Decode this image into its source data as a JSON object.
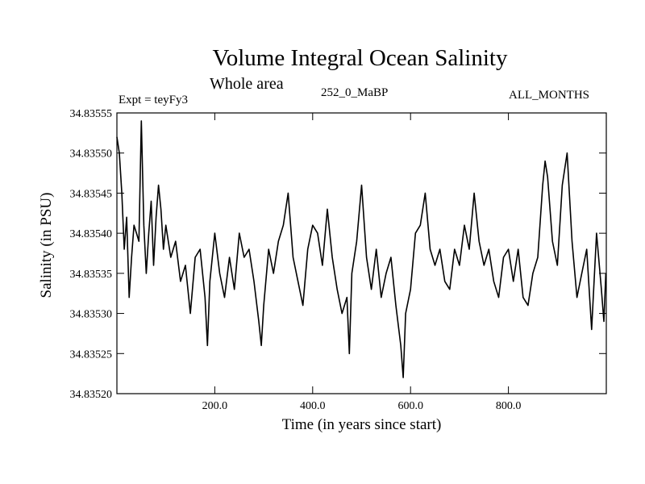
{
  "chart_data": {
    "type": "line",
    "title": "Volume Integral Ocean Salinity",
    "subtitle": "Whole area",
    "annotations": {
      "experiment": "Expt = teyFy3",
      "run": "252_0_MaBP",
      "period": "ALL_MONTHS"
    },
    "xlabel": "Time (in years since start)",
    "ylabel": "Salinity (in PSU)",
    "xlim": [
      0,
      1000
    ],
    "ylim": [
      34.8352,
      34.83555
    ],
    "xticks": [
      200,
      400,
      600,
      800
    ],
    "xtick_labels": [
      "200.0",
      "400.0",
      "600.0",
      "800.0"
    ],
    "yticks": [
      34.8352,
      34.83525,
      34.8353,
      34.83535,
      34.8354,
      34.83545,
      34.8355,
      34.83555
    ],
    "ytick_labels": [
      "34.83520",
      "34.83525",
      "34.83530",
      "34.83535",
      "34.83540",
      "34.83545",
      "34.83550",
      "34.83555"
    ],
    "series": [
      {
        "name": "Salinity",
        "x": [
          0,
          5,
          10,
          15,
          20,
          25,
          30,
          35,
          40,
          45,
          50,
          55,
          60,
          65,
          70,
          75,
          80,
          85,
          90,
          95,
          100,
          110,
          120,
          130,
          140,
          150,
          160,
          170,
          180,
          185,
          190,
          200,
          210,
          220,
          230,
          240,
          250,
          260,
          270,
          280,
          290,
          295,
          300,
          310,
          320,
          330,
          340,
          350,
          360,
          370,
          380,
          390,
          400,
          410,
          420,
          430,
          440,
          450,
          460,
          470,
          475,
          480,
          490,
          500,
          510,
          520,
          530,
          540,
          550,
          560,
          570,
          580,
          585,
          590,
          600,
          610,
          620,
          630,
          640,
          650,
          660,
          670,
          680,
          690,
          700,
          710,
          720,
          730,
          740,
          750,
          760,
          770,
          780,
          790,
          800,
          810,
          820,
          830,
          840,
          850,
          860,
          870,
          875,
          880,
          890,
          900,
          910,
          920,
          930,
          940,
          950,
          960,
          970,
          980,
          990,
          995,
          999
        ],
        "y": [
          34.83552,
          34.8355,
          34.83545,
          34.83538,
          34.83542,
          34.83532,
          34.83537,
          34.83541,
          34.8354,
          34.83539,
          34.83554,
          34.83541,
          34.83535,
          34.8354,
          34.83544,
          34.83536,
          34.83542,
          34.83546,
          34.83543,
          34.83538,
          34.83541,
          34.83537,
          34.83539,
          34.83534,
          34.83536,
          34.8353,
          34.83537,
          34.83538,
          34.83532,
          34.83526,
          34.83534,
          34.8354,
          34.83535,
          34.83532,
          34.83537,
          34.83533,
          34.8354,
          34.83537,
          34.83538,
          34.83534,
          34.83529,
          34.83526,
          34.83531,
          34.83538,
          34.83535,
          34.83539,
          34.83541,
          34.83545,
          34.83537,
          34.83534,
          34.83531,
          34.83538,
          34.83541,
          34.8354,
          34.83536,
          34.83543,
          34.83537,
          34.83533,
          34.8353,
          34.83532,
          34.83525,
          34.83535,
          34.83539,
          34.83546,
          34.83537,
          34.83533,
          34.83538,
          34.83532,
          34.83535,
          34.83537,
          34.83531,
          34.83526,
          34.83522,
          34.8353,
          34.83533,
          34.8354,
          34.83541,
          34.83545,
          34.83538,
          34.83536,
          34.83538,
          34.83534,
          34.83533,
          34.83538,
          34.83536,
          34.83541,
          34.83538,
          34.83545,
          34.83539,
          34.83536,
          34.83538,
          34.83534,
          34.83532,
          34.83537,
          34.83538,
          34.83534,
          34.83538,
          34.83532,
          34.83531,
          34.83535,
          34.83537,
          34.83546,
          34.83549,
          34.83547,
          34.83539,
          34.83536,
          34.83546,
          34.8355,
          34.83539,
          34.83532,
          34.83535,
          34.83538,
          34.83528,
          34.8354,
          34.83533,
          34.83529,
          34.83535
        ]
      }
    ]
  }
}
